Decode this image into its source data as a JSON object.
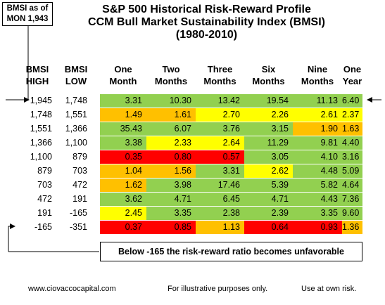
{
  "chart_data": {
    "type": "table",
    "title_lines": [
      "S&P 500 Historical Risk-Reward Profile",
      "CCM Bull Market Sustainability Index (BMSI)",
      "(1980-2010)"
    ],
    "bmsi_box": [
      "BMSI as of",
      "MON 1,943"
    ],
    "row_headers": [
      [
        "BMSI",
        "HIGH"
      ],
      [
        "BMSI",
        "LOW"
      ]
    ],
    "column_headers": [
      [
        "One",
        "Month"
      ],
      [
        "Two",
        "Months"
      ],
      [
        "Three",
        "Months"
      ],
      [
        "Six",
        "Months"
      ],
      [
        "Nine",
        "Months"
      ],
      [
        "One",
        "Year"
      ]
    ],
    "rows": [
      {
        "high": "1,945",
        "low": "1,748",
        "values": [
          "3.31",
          "10.30",
          "13.42",
          "19.54",
          "11.13",
          "6.40"
        ],
        "colors": [
          "green",
          "green",
          "green",
          "green",
          "green",
          "green"
        ]
      },
      {
        "high": "1,748",
        "low": "1,551",
        "values": [
          "1.49",
          "1.61",
          "2.70",
          "2.26",
          "2.61",
          "2.37"
        ],
        "colors": [
          "orange",
          "orange",
          "yellow",
          "yellow",
          "yellow",
          "yellow"
        ]
      },
      {
        "high": "1,551",
        "low": "1,366",
        "values": [
          "35.43",
          "6.07",
          "3.76",
          "3.15",
          "1.90",
          "1.63"
        ],
        "colors": [
          "green",
          "green",
          "green",
          "green",
          "orange",
          "orange"
        ]
      },
      {
        "high": "1,366",
        "low": "1,100",
        "values": [
          "3.38",
          "2.33",
          "2.64",
          "11.29",
          "9.81",
          "4.40"
        ],
        "colors": [
          "green",
          "yellow",
          "yellow",
          "green",
          "green",
          "green"
        ]
      },
      {
        "high": "1,100",
        "low": "879",
        "values": [
          "0.35",
          "0.80",
          "0.57",
          "3.05",
          "4.10",
          "3.16"
        ],
        "colors": [
          "red",
          "red",
          "red",
          "green",
          "green",
          "green"
        ]
      },
      {
        "high": "879",
        "low": "703",
        "values": [
          "1.04",
          "1.56",
          "3.31",
          "2.62",
          "4.48",
          "5.09"
        ],
        "colors": [
          "orange",
          "orange",
          "green",
          "yellow",
          "green",
          "green"
        ]
      },
      {
        "high": "703",
        "low": "472",
        "values": [
          "1.62",
          "3.98",
          "17.46",
          "5.39",
          "5.82",
          "4.64"
        ],
        "colors": [
          "orange",
          "green",
          "green",
          "green",
          "green",
          "green"
        ]
      },
      {
        "high": "472",
        "low": "191",
        "values": [
          "3.62",
          "4.71",
          "6.45",
          "4.71",
          "4.43",
          "7.36"
        ],
        "colors": [
          "green",
          "green",
          "green",
          "green",
          "green",
          "green"
        ]
      },
      {
        "high": "191",
        "low": "-165",
        "values": [
          "2.45",
          "3.35",
          "2.38",
          "2.39",
          "3.35",
          "9.60"
        ],
        "colors": [
          "yellow",
          "green",
          "green",
          "green",
          "green",
          "green"
        ]
      },
      {
        "high": "-165",
        "low": "-351",
        "values": [
          "0.37",
          "0.85",
          "1.13",
          "0.64",
          "0.93",
          "1.36"
        ],
        "colors": [
          "red",
          "red",
          "orange",
          "red",
          "red",
          "orange"
        ]
      }
    ],
    "palette": {
      "green": "#92d050",
      "yellow": "#ffff00",
      "orange": "#ffc000",
      "red": "#ff0000"
    },
    "note": "Below -165 the risk-reward ratio becomes unfavorable",
    "footer": {
      "left": "www.ciovaccocapital.com",
      "center": "For illustrative purposes only.",
      "right": "Use at own risk."
    }
  }
}
